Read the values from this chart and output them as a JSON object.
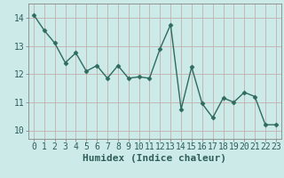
{
  "x": [
    0,
    1,
    2,
    3,
    4,
    5,
    6,
    7,
    8,
    9,
    10,
    11,
    12,
    13,
    14,
    15,
    16,
    17,
    18,
    19,
    20,
    21,
    22,
    23
  ],
  "y": [
    14.1,
    13.55,
    13.1,
    12.4,
    12.75,
    12.1,
    12.3,
    11.85,
    12.3,
    11.85,
    11.9,
    11.85,
    12.9,
    13.75,
    10.75,
    12.25,
    10.95,
    10.45,
    11.15,
    11.0,
    11.35,
    11.2,
    10.2,
    10.2
  ],
  "line_color": "#2e6b5e",
  "marker": "D",
  "markersize": 2.5,
  "linewidth": 1.0,
  "bg_color": "#cceae7",
  "grid_color": "#c4b0b0",
  "xlabel": "Humidex (Indice chaleur)",
  "xlabel_fontsize": 8,
  "tick_fontsize": 7,
  "yticks": [
    10,
    11,
    12,
    13,
    14
  ],
  "xticks": [
    0,
    1,
    2,
    3,
    4,
    5,
    6,
    7,
    8,
    9,
    10,
    11,
    12,
    13,
    14,
    15,
    16,
    17,
    18,
    19,
    20,
    21,
    22,
    23
  ],
  "ylim": [
    9.7,
    14.5
  ],
  "xlim": [
    -0.5,
    23.5
  ],
  "spine_color": "#888888"
}
